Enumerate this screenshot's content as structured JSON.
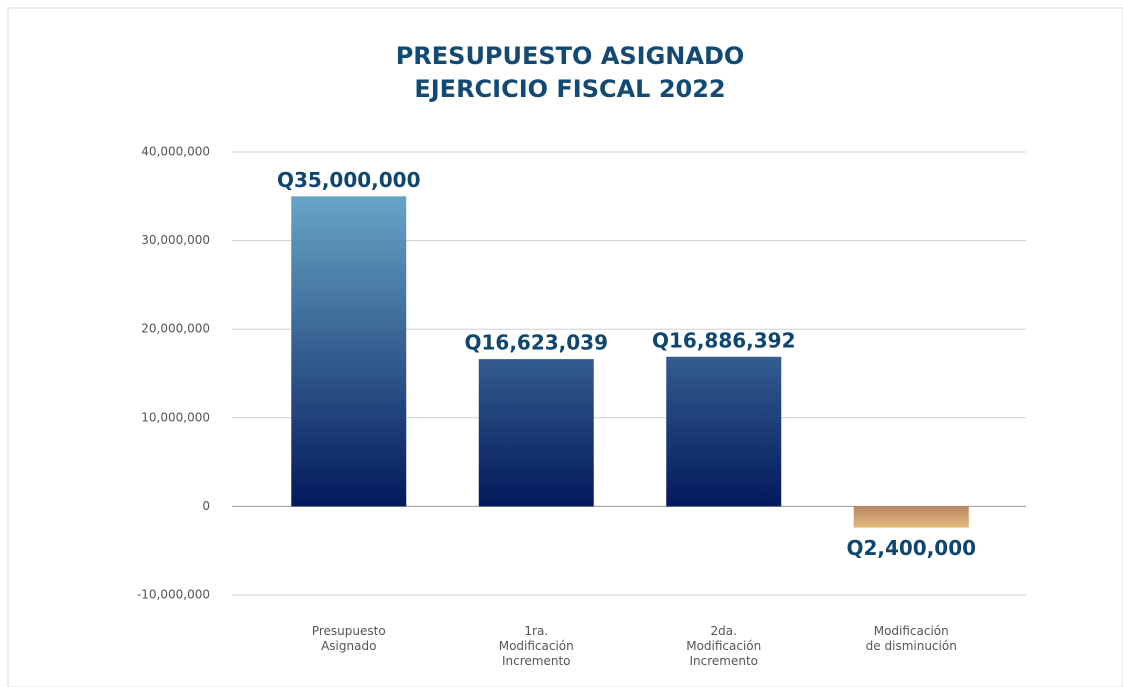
{
  "chart_data": {
    "type": "bar",
    "title": [
      "PRESUPUESTO ASIGNADO",
      "EJERCICIO FISCAL 2022"
    ],
    "categories": [
      [
        "Presupuesto",
        "Asignado"
      ],
      [
        "1ra.",
        "Modificación",
        "Incremento"
      ],
      [
        "2da.",
        "Modificación",
        "Incremento"
      ],
      [
        "Modificación",
        "de disminución"
      ]
    ],
    "values": [
      35000000,
      16623039,
      16886392,
      -2400000
    ],
    "value_labels": [
      "Q35,000,000",
      "Q16,623,039",
      "Q16,886,392",
      "Q2,400,000"
    ],
    "color": "#03195c",
    "color_top": "#76b9d4",
    "negative_colors": [
      "#b88664",
      "#e2bb7c"
    ],
    "ylim": [
      -10000000,
      40000000
    ],
    "yticks": [
      {
        "value": -10000000,
        "label": "-10,000,000"
      },
      0,
      {
        "value": 10000000,
        "label": "10,000,000"
      },
      {
        "value": 20000000,
        "label": "20,000,000"
      },
      {
        "value": 30000000,
        "label": "30,000,000"
      },
      {
        "value": 40000000,
        "label": "40,000,000"
      }
    ],
    "grid": true
  }
}
